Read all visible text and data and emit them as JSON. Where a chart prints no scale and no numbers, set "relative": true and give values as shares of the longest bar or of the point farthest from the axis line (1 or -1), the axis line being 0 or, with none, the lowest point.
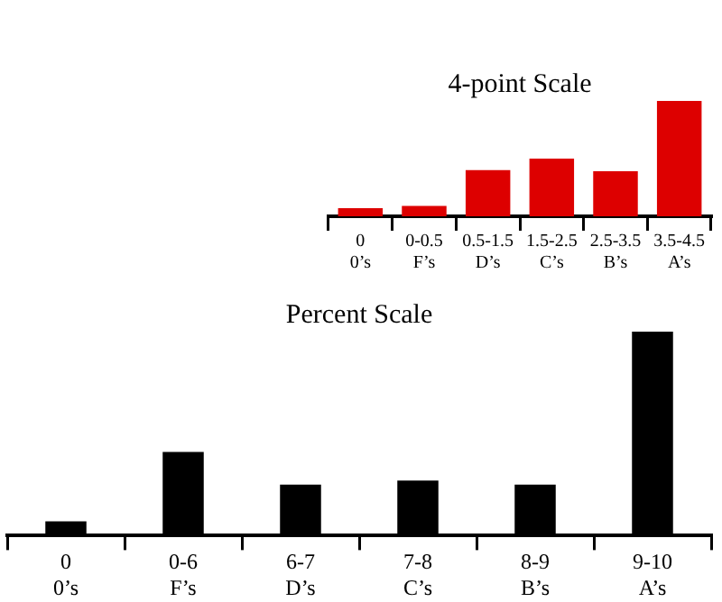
{
  "chart_data": [
    {
      "type": "bar",
      "title": "4-point Scale",
      "relative": true,
      "categories": [
        "0\n0’s",
        "0-0.5\nF’s",
        "0.5-1.5\nD’s",
        "1.5-2.5\nC’s",
        "2.5-3.5\nB’s",
        "3.5-4.5\nA’s"
      ],
      "series": [
        {
          "color": "#dd0000",
          "values": [
            0.07,
            0.09,
            0.4,
            0.5,
            0.39,
            1
          ]
        }
      ]
    },
    {
      "type": "bar",
      "title": "Percent Scale",
      "relative": true,
      "categories": [
        "0\n0’s",
        "0-6\nF’s",
        "6-7\nD’s",
        "7-8\nC’s",
        "8-9\nB’s",
        "9-10\nA’s"
      ],
      "series": [
        {
          "color": "#000000",
          "values": [
            0.07,
            0.41,
            0.25,
            0.27,
            0.25,
            1
          ]
        }
      ]
    }
  ]
}
